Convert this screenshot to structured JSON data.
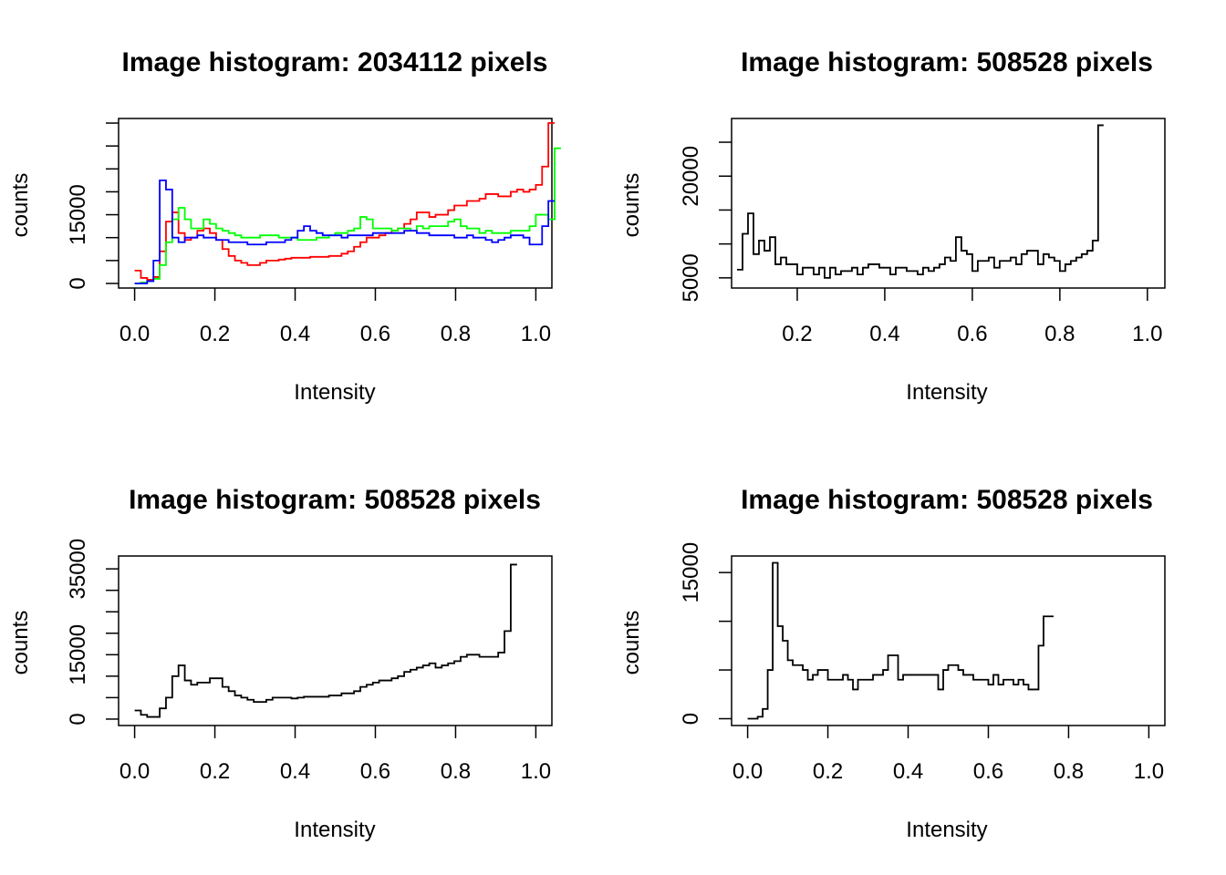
{
  "chart_data": [
    {
      "type": "line",
      "title": "Image histogram: 2034112 pixels",
      "xlabel": "Intensity",
      "ylabel": "counts",
      "xlim": [
        -0.04,
        1.04
      ],
      "ylim": [
        -1000,
        36000
      ],
      "xticks": [
        "0.0",
        "0.2",
        "0.4",
        "0.6",
        "0.8",
        "1.0"
      ],
      "xtick_values": [
        0,
        0.2,
        0.4,
        0.6,
        0.8,
        1.0
      ],
      "yticks": [
        "0",
        "15000"
      ],
      "ytick_values": [
        0,
        15000
      ],
      "yticks_unlabeled": [
        5000,
        10000,
        20000,
        25000,
        30000,
        35000
      ],
      "bin_width": 0.015625,
      "x_start": 0.0,
      "series": [
        {
          "color": "#ff0000",
          "values": [
            2800,
            1200,
            800,
            1400,
            7000,
            13500,
            15500,
            11000,
            9500,
            10000,
            11500,
            12000,
            11000,
            9500,
            7500,
            6000,
            5000,
            4500,
            4000,
            4000,
            4500,
            5000,
            5000,
            5200,
            5400,
            5600,
            5600,
            5600,
            5800,
            5800,
            5800,
            6000,
            6000,
            6500,
            7000,
            8000,
            9000,
            10000,
            10000,
            10500,
            11000,
            11500,
            12000,
            13000,
            14000,
            15500,
            15500,
            14500,
            15000,
            15000,
            16000,
            17000,
            17000,
            18000,
            18000,
            18500,
            19500,
            19500,
            19000,
            19000,
            20000,
            20500,
            20000,
            20500,
            21500,
            25500,
            35000
          ]
        },
        {
          "color": "#00ff00",
          "values": [
            0,
            200,
            500,
            1000,
            4000,
            9000,
            14000,
            16500,
            14000,
            12000,
            12000,
            14000,
            13000,
            12000,
            11500,
            11000,
            10500,
            10000,
            10000,
            10000,
            10500,
            10500,
            10500,
            10000,
            10000,
            10000,
            9500,
            9500,
            9500,
            10000,
            10000,
            10500,
            11000,
            11000,
            11500,
            12000,
            14500,
            14000,
            12000,
            12000,
            12000,
            11500,
            12000,
            12000,
            11500,
            12500,
            12000,
            12500,
            12500,
            12500,
            13500,
            14000,
            12500,
            12000,
            12000,
            11000,
            11500,
            11000,
            11000,
            11000,
            11500,
            11500,
            11500,
            12500,
            15000,
            15000,
            14000,
            29500
          ]
        },
        {
          "color": "#0000ff",
          "values": [
            0,
            0,
            500,
            5000,
            22500,
            20500,
            10000,
            9000,
            10000,
            10000,
            10500,
            10000,
            10000,
            9500,
            9500,
            9000,
            9000,
            9000,
            8500,
            8500,
            8500,
            9000,
            9000,
            9000,
            9500,
            10000,
            11500,
            12500,
            11500,
            11000,
            10500,
            10500,
            10500,
            10000,
            10500,
            10500,
            10500,
            10500,
            11000,
            11000,
            11000,
            11000,
            11000,
            11500,
            11500,
            11000,
            11000,
            10500,
            10500,
            10500,
            10500,
            10000,
            10000,
            10500,
            10000,
            10000,
            9500,
            9000,
            9500,
            10000,
            10500,
            10500,
            10000,
            8500,
            8500,
            12500,
            18000
          ]
        }
      ]
    },
    {
      "type": "line",
      "title": "Image histogram: 508528 pixels",
      "xlabel": "Intensity",
      "ylabel": "counts",
      "xlim": [
        0.05,
        1.04
      ],
      "ylim": [
        3500,
        28500
      ],
      "xticks": [
        "0.2",
        "0.4",
        "0.6",
        "0.8",
        "1.0"
      ],
      "xtick_values": [
        0.2,
        0.4,
        0.6,
        0.8,
        1.0
      ],
      "yticks": [
        "5000",
        "20000"
      ],
      "ytick_values": [
        5000,
        20000
      ],
      "yticks_unlabeled": [
        10000,
        15000,
        25000
      ],
      "bin_width": 0.0125,
      "x_start": 0.0625,
      "series": [
        {
          "color": "#000000",
          "values": [
            6200,
            11500,
            14500,
            8500,
            10500,
            9000,
            11000,
            7000,
            8000,
            7000,
            7000,
            5500,
            6500,
            6500,
            5500,
            6500,
            5000,
            6500,
            5500,
            6000,
            6000,
            6500,
            5500,
            6500,
            7000,
            7000,
            6500,
            6500,
            5500,
            6500,
            6500,
            6000,
            6000,
            5500,
            6500,
            6000,
            6500,
            7000,
            8000,
            7500,
            11000,
            9000,
            8500,
            6000,
            7500,
            7500,
            8000,
            6500,
            7500,
            7500,
            8000,
            7000,
            8500,
            9000,
            9000,
            7000,
            8500,
            8000,
            7500,
            6000,
            7000,
            7500,
            8000,
            8500,
            9000,
            10500,
            27500
          ]
        }
      ]
    },
    {
      "type": "line",
      "title": "Image histogram: 508528 pixels",
      "xlabel": "Intensity",
      "ylabel": "counts",
      "xlim": [
        -0.04,
        1.04
      ],
      "ylim": [
        -1500,
        38000
      ],
      "xticks": [
        "0.0",
        "0.2",
        "0.4",
        "0.6",
        "0.8",
        "1.0"
      ],
      "xtick_values": [
        0,
        0.2,
        0.4,
        0.6,
        0.8,
        1.0
      ],
      "yticks": [
        "0",
        "15000",
        "35000"
      ],
      "ytick_values": [
        0,
        15000,
        35000
      ],
      "yticks_unlabeled": [
        5000,
        10000,
        20000,
        25000,
        30000
      ],
      "bin_width": 0.015625,
      "x_start": 0.0,
      "series": [
        {
          "color": "#000000",
          "values": [
            2000,
            1000,
            500,
            500,
            2500,
            5000,
            10000,
            12500,
            9000,
            8000,
            8500,
            8500,
            9500,
            9500,
            7500,
            6500,
            5500,
            5000,
            4500,
            4000,
            4000,
            4500,
            5000,
            5000,
            5000,
            4800,
            5000,
            5200,
            5200,
            5200,
            5200,
            5500,
            5500,
            6000,
            6000,
            6500,
            7500,
            8000,
            8500,
            9000,
            9000,
            9500,
            10000,
            11000,
            11500,
            12000,
            12500,
            13000,
            12000,
            12500,
            13000,
            13500,
            14500,
            15000,
            15000,
            14500,
            14500,
            14500,
            15500,
            20500,
            36000
          ]
        }
      ]
    },
    {
      "type": "line",
      "title": "Image histogram: 508528 pixels",
      "xlabel": "Intensity",
      "ylabel": "counts",
      "xlim": [
        -0.04,
        1.04
      ],
      "ylim": [
        -700,
        16700
      ],
      "xticks": [
        "0.0",
        "0.2",
        "0.4",
        "0.6",
        "0.8",
        "1.0"
      ],
      "xtick_values": [
        0,
        0.2,
        0.4,
        0.6,
        0.8,
        1.0
      ],
      "yticks": [
        "0",
        "15000"
      ],
      "ytick_values": [
        0,
        15000
      ],
      "yticks_unlabeled": [
        5000,
        10000
      ],
      "bin_width": 0.0125,
      "x_start": 0.0,
      "series": [
        {
          "color": "#000000",
          "values": [
            0,
            0,
            200,
            1000,
            5000,
            16000,
            9500,
            8000,
            6000,
            5500,
            5500,
            5000,
            4000,
            4500,
            5000,
            5000,
            4000,
            4000,
            4000,
            4500,
            4000,
            3000,
            4000,
            4000,
            4000,
            4500,
            4500,
            5000,
            6500,
            6500,
            4000,
            4500,
            4500,
            4500,
            4500,
            4500,
            4500,
            4500,
            3000,
            5000,
            5500,
            5500,
            5000,
            4500,
            4500,
            4000,
            4000,
            4000,
            3500,
            4500,
            3500,
            4000,
            4000,
            3500,
            4000,
            3500,
            3000,
            3000,
            7500,
            10500,
            10500
          ]
        }
      ]
    }
  ]
}
